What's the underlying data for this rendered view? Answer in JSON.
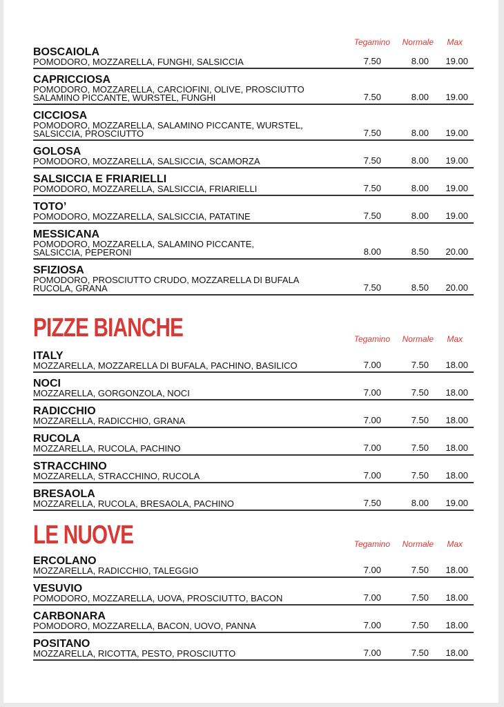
{
  "columns": [
    "Tegamino",
    "Normale",
    "Max"
  ],
  "sections": [
    {
      "title": "",
      "items": [
        {
          "name": "BOSCAIOLA",
          "desc": "POMODORO, MOZZARELLA, FUNGHI, SALSICCIA",
          "prices": [
            "7.50",
            "8.00",
            "19.00"
          ]
        },
        {
          "name": "CAPRICCIOSA",
          "desc": "POMODORO, MOZZARELLA, CARCIOFINI, OLIVE, PROSCIUTTO\nSALAMINO PICCANTE, WURSTEL, FUNGHI",
          "prices": [
            "7.50",
            "8.00",
            "19.00"
          ]
        },
        {
          "name": "CICCIOSA",
          "desc": "POMODORO, MOZZARELLA, SALAMINO PICCANTE, WURSTEL,\nSALSICCIA, PROSCIUTTO",
          "prices": [
            "7.50",
            "8.00",
            "19.00"
          ]
        },
        {
          "name": "GOLOSA",
          "desc": "POMODORO, MOZZARELLA, SALSICCIA, SCAMORZA",
          "prices": [
            "7.50",
            "8.00",
            "19.00"
          ]
        },
        {
          "name": "SALSICCIA E FRIARIELLI",
          "desc": "POMODORO, MOZZARELLA, SALSICCIA, FRIARIELLI",
          "prices": [
            "7.50",
            "8.00",
            "19.00"
          ]
        },
        {
          "name": "TOTO’",
          "desc": "POMODORO, MOZZARELLA, SALSICCIA, PATATINE",
          "prices": [
            "7.50",
            "8.00",
            "19.00"
          ]
        },
        {
          "name": "MESSICANA",
          "desc": "POMODORO, MOZZARELLA, SALAMINO PICCANTE,\nSALSICCIA, PEPERONI",
          "prices": [
            "8.00",
            "8.50",
            "20.00"
          ]
        },
        {
          "name": "SFIZIOSA",
          "desc": "POMODORO, PROSCIUTTO CRUDO, MOZZARELLA DI BUFALA\nRUCOLA, GRANA",
          "prices": [
            "7.50",
            "8.50",
            "20.00"
          ]
        }
      ]
    },
    {
      "title": "PIZZE BIANCHE",
      "items": [
        {
          "name": "ITALY",
          "desc": "MOZZARELLA, MOZZARELLA DI BUFALA, PACHINO, BASILICO",
          "prices": [
            "7.00",
            "7.50",
            "18.00"
          ]
        },
        {
          "name": "NOCI",
          "desc": "MOZZARELLA, GORGONZOLA, NOCI",
          "prices": [
            "7.00",
            "7.50",
            "18.00"
          ]
        },
        {
          "name": "RADICCHIO",
          "desc": "MOZZARELLA, RADICCHIO, GRANA",
          "prices": [
            "7.00",
            "7.50",
            "18.00"
          ]
        },
        {
          "name": "RUCOLA",
          "desc": "MOZZARELLA, RUCOLA, PACHINO",
          "prices": [
            "7.00",
            "7.50",
            "18.00"
          ]
        },
        {
          "name": "STRACCHINO",
          "desc": "MOZZARELLA, STRACCHINO, RUCOLA",
          "prices": [
            "7.00",
            "7.50",
            "18.00"
          ]
        },
        {
          "name": "BRESAOLA",
          "desc": "MOZZARELLA, RUCOLA, BRESAOLA, PACHINO",
          "prices": [
            "7.50",
            "8.00",
            "19.00"
          ]
        }
      ]
    },
    {
      "title": "LE NUOVE",
      "items": [
        {
          "name": "ERCOLANO",
          "desc": "MOZZARELLA, RADICCHIO, TALEGGIO",
          "prices": [
            "7.00",
            "7.50",
            "18.00"
          ]
        },
        {
          "name": "VESUVIO",
          "desc": "POMODORO, MOZZARELLA, UOVA, PROSCIUTTO, BACON",
          "prices": [
            "7.00",
            "7.50",
            "18.00"
          ]
        },
        {
          "name": "CARBONARA",
          "desc": "POMODORO, MOZZARELLA, BACON, UOVO, PANNA",
          "prices": [
            "7.00",
            "7.50",
            "18.00"
          ]
        },
        {
          "name": "POSITANO",
          "desc": "MOZZARELLA, RICOTTA, PESTO, PROSCIUTTO",
          "prices": [
            "7.00",
            "7.50",
            "18.00"
          ]
        }
      ]
    }
  ],
  "colors": {
    "accent": "#d63a36",
    "text": "#111111"
  }
}
